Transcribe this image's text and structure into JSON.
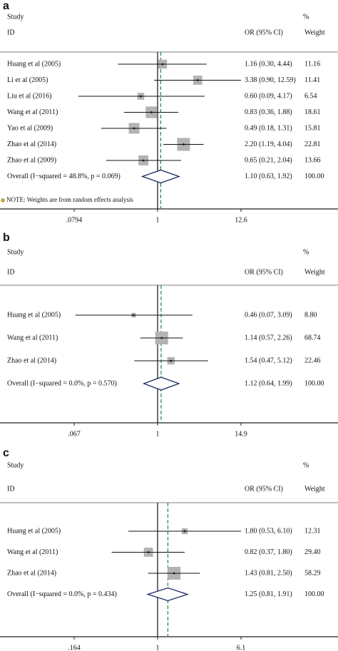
{
  "chart_data": [
    {
      "type": "forest",
      "panel": "a",
      "log_x": true,
      "headers": {
        "study": "Study",
        "id": "ID",
        "ci": "OR (95% CI)",
        "pct": "%",
        "weight": "Weight"
      },
      "categories": [
        "Huang et al (2005)",
        "Li et al (2005)",
        "Liu et al (2016)",
        "Wang et al (2011)",
        "Yao et al (2009)",
        "Zhao et al (2014)",
        "Zhao et al (2009)"
      ],
      "or": [
        1.16,
        3.38,
        0.6,
        0.83,
        0.49,
        2.2,
        0.65
      ],
      "lower": [
        0.3,
        0.9,
        0.09,
        0.36,
        0.18,
        1.19,
        0.21
      ],
      "upper": [
        4.44,
        12.59,
        4.17,
        1.88,
        1.31,
        4.04,
        2.04
      ],
      "value_labels": [
        "1.16 (0.30, 4.44)",
        "3.38 (0.90, 12.59)",
        "0.60 (0.09, 4.17)",
        "0.83 (0.36, 1.88)",
        "0.49 (0.18, 1.31)",
        "2.20 (1.19, 4.04)",
        "0.65 (0.21, 2.04)"
      ],
      "weights": [
        11.16,
        11.41,
        6.54,
        18.61,
        15.81,
        22.81,
        13.66
      ],
      "weight_labels": [
        "11.16",
        "11.41",
        "6.54",
        "18.61",
        "15.81",
        "22.81",
        "13.66"
      ],
      "overall": {
        "label": "Overall  (I−squared = 48.8%, p = 0.069)",
        "or": 1.1,
        "lower": 0.63,
        "upper": 1.92,
        "value_label": "1.10 (0.63, 1.92)",
        "weight": 100,
        "weight_label": "100.00"
      },
      "note": "NOTE: Weights are from random effects analysis",
      "xlim": [
        0.0794,
        12.6
      ],
      "xticks": [
        {
          "value": 0.0794,
          "label": ".0794"
        },
        1,
        12.6
      ]
    },
    {
      "type": "forest",
      "panel": "b",
      "log_x": true,
      "headers": {
        "study": "Study",
        "id": "ID",
        "ci": "OR (95% CI)",
        "pct": "%",
        "weight": "Weight"
      },
      "categories": [
        "Huang et al (2005)",
        "Wang et al (2011)",
        "Zhao et al (2014)"
      ],
      "or": [
        0.46,
        1.14,
        1.54
      ],
      "lower": [
        0.07,
        0.57,
        0.47
      ],
      "upper": [
        3.09,
        2.26,
        5.12
      ],
      "value_labels": [
        "0.46 (0.07, 3.09)",
        "1.14 (0.57, 2.26)",
        "1.54 (0.47, 5.12)"
      ],
      "weights": [
        8.8,
        68.74,
        22.46
      ],
      "weight_labels": [
        "8.80",
        "68.74",
        "22.46"
      ],
      "overall": {
        "label": "Overall  (I−squared = 0.0%, p = 0.570)",
        "or": 1.12,
        "lower": 0.64,
        "upper": 1.99,
        "value_label": "1.12 (0.64, 1.99)",
        "weight": 100,
        "weight_label": "100.00"
      },
      "xlim": [
        0.067,
        14.9
      ],
      "xticks": [
        {
          "value": 0.067,
          "label": ".067"
        },
        1,
        14.9
      ]
    },
    {
      "type": "forest",
      "panel": "c",
      "log_x": true,
      "headers": {
        "study": "Study",
        "id": "ID",
        "ci": "OR (95% CI)",
        "pct": "%",
        "weight": "Weight"
      },
      "categories": [
        "Huang et al (2005)",
        "Wang et al (2011)",
        "Zhao et al (2014)"
      ],
      "or": [
        1.8,
        0.82,
        1.43
      ],
      "lower": [
        0.53,
        0.37,
        0.81
      ],
      "upper": [
        6.1,
        1.8,
        2.5
      ],
      "value_labels": [
        "1.80 (0.53, 6.10)",
        "0.82 (0.37, 1.80)",
        "1.43 (0.81, 2.50)"
      ],
      "weights": [
        12.31,
        29.4,
        58.29
      ],
      "weight_labels": [
        "12.31",
        "29.40",
        "58.29"
      ],
      "overall": {
        "label": "Overall  (I−squared = 0.0%, p = 0.434)",
        "or": 1.25,
        "lower": 0.81,
        "upper": 1.91,
        "value_label": "1.25 (0.81, 1.91)",
        "weight": 100,
        "weight_label": "100.00"
      },
      "xlim": [
        0.164,
        6.1
      ],
      "xticks": [
        {
          "value": 0.164,
          "label": ".164"
        },
        1,
        6.1
      ]
    }
  ]
}
